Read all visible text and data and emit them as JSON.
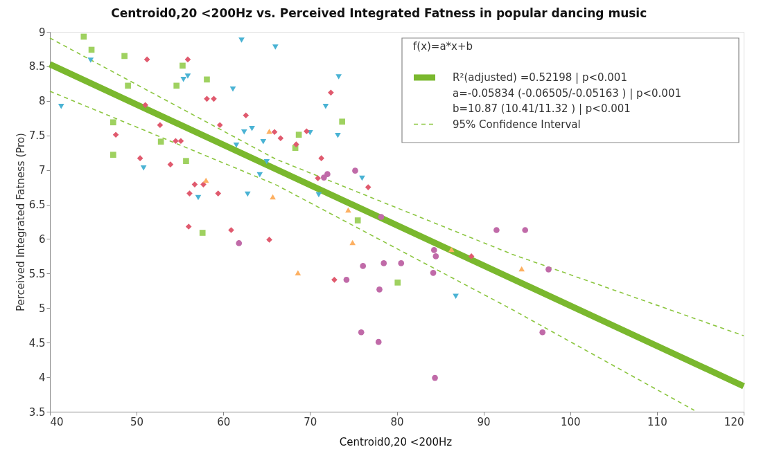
{
  "chart_data": {
    "type": "scatter",
    "title": "Centroid0,20 <200Hz vs. Perceived Integrated Fatness in popular dancing music",
    "xlabel": "Centroid0,20 <200Hz",
    "ylabel": "Perceived Integrated Fatness (Pro)",
    "legend_title": "f(x)=a*x+b",
    "annotations": [
      "a=-0.05834 (-0.06505/-0.05163 ) | p<0.001",
      "b=10.87 (10.41/11.32 ) | p<0.001"
    ],
    "xlim": [
      40,
      120
    ],
    "xticks": [
      40,
      50,
      60,
      70,
      80,
      90,
      100,
      110,
      120
    ],
    "ylim": [
      3.5,
      9
    ],
    "yticks": [
      3.5,
      4,
      4.5,
      5,
      5.5,
      6,
      6.5,
      7,
      7.5,
      8,
      8.5,
      9
    ],
    "grid": false,
    "legend": "top right",
    "series": [
      {
        "marker": "square",
        "color": "#9fd160",
        "x": [
          43.9,
          44.8,
          48.6,
          49.0,
          55.3,
          54.6,
          58.1,
          47.3,
          52.8,
          47.3,
          55.7,
          57.6,
          68.7,
          68.3,
          73.7,
          75.5,
          80.1
        ],
        "values": [
          8.93,
          8.74,
          8.65,
          8.22,
          8.51,
          8.22,
          8.31,
          7.69,
          7.41,
          7.22,
          7.13,
          6.09,
          7.51,
          7.32,
          7.7,
          6.27,
          5.37
        ]
      },
      {
        "marker": "triangle-down",
        "color": "#4ab3d4",
        "x": [
          44.7,
          62.1,
          66.0,
          41.3,
          55.9,
          55.4,
          61.1,
          62.4,
          63.3,
          61.5,
          64.6,
          65.0,
          64.2,
          50.8,
          57.1,
          62.8,
          73.3,
          71.8,
          70.0,
          73.2,
          76.0,
          71.0,
          86.8
        ],
        "values": [
          8.59,
          8.88,
          8.78,
          7.92,
          8.36,
          8.31,
          8.17,
          7.55,
          7.6,
          7.36,
          7.41,
          7.12,
          6.93,
          7.03,
          6.6,
          6.65,
          8.35,
          7.92,
          7.54,
          7.5,
          6.88,
          6.64,
          5.17
        ]
      },
      {
        "marker": "diamond",
        "color": "#e05a6e",
        "x": [
          51.2,
          55.9,
          51.0,
          58.1,
          58.9,
          62.6,
          59.6,
          52.7,
          47.6,
          54.5,
          55.1,
          65.9,
          66.6,
          50.4,
          53.9,
          56.7,
          57.7,
          56.1,
          59.4,
          56.0,
          60.9,
          65.3,
          72.4,
          68.4,
          69.6,
          71.3,
          70.9,
          76.7,
          72.8,
          88.6
        ],
        "values": [
          8.6,
          8.6,
          7.94,
          8.03,
          8.03,
          7.79,
          7.65,
          7.65,
          7.51,
          7.42,
          7.42,
          7.55,
          7.46,
          7.17,
          7.08,
          6.79,
          6.79,
          6.66,
          6.66,
          6.18,
          6.13,
          5.99,
          8.12,
          7.37,
          7.56,
          7.17,
          6.88,
          6.75,
          5.41,
          5.75
        ]
      },
      {
        "marker": "triangle",
        "color": "#fdb062",
        "x": [
          65.3,
          58.0,
          65.7,
          68.6,
          74.4,
          74.9,
          86.3,
          94.4
        ],
        "values": [
          7.56,
          6.85,
          6.61,
          5.51,
          6.42,
          5.95,
          5.85,
          5.57
        ]
      },
      {
        "marker": "circle",
        "color": "#c06aa8",
        "x": [
          61.8,
          75.2,
          72.0,
          71.6,
          78.2,
          91.5,
          94.8,
          84.3,
          84.5,
          76.1,
          78.5,
          80.5,
          84.2,
          97.5,
          74.2,
          78.0,
          75.9,
          77.9,
          96.8,
          84.4
        ],
        "values": [
          5.94,
          6.99,
          6.94,
          6.89,
          6.32,
          6.13,
          6.13,
          5.84,
          5.75,
          5.61,
          5.65,
          5.65,
          5.51,
          5.56,
          5.41,
          5.27,
          4.65,
          4.51,
          4.65,
          3.99
        ]
      },
      {
        "type": "line",
        "name": "R²(adjusted) =0.52198 | p<0.001",
        "line_style": "solid",
        "color": "#7ab82e",
        "x": [
          40,
          120
        ],
        "values": [
          8.53,
          3.87
        ]
      },
      {
        "type": "line",
        "name": "95% Confidence Interval",
        "line_style": "dashed",
        "color": "#8cc640",
        "x": [
          40,
          66,
          93.3,
          120
        ],
        "values": [
          8.91,
          7.16,
          5.78,
          4.6
        ]
      },
      {
        "type": "line",
        "line_style": "dashed",
        "color": "#8cc640",
        "x": [
          40,
          66,
          93.3,
          114.3
        ],
        "values": [
          8.14,
          6.79,
          4.98,
          3.52
        ]
      }
    ]
  }
}
